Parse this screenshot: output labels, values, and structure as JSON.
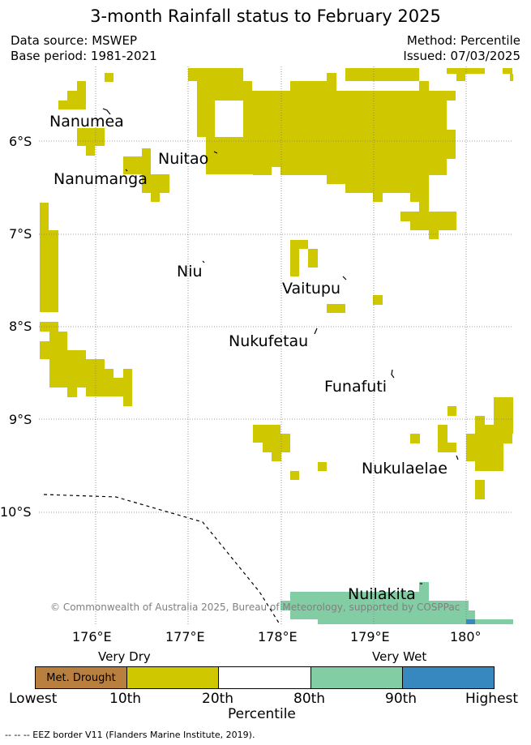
{
  "title": "3-month Rainfall status to February 2025",
  "header": {
    "source": "Data source: MSWEP",
    "base_period": "Base period: 1981-2021",
    "method": "Method: Percentile",
    "issued": "Issued: 07/03/2025"
  },
  "colors": {
    "met_drought": "#b87f3f",
    "very_dry": "#cfc800",
    "normal": "#ffffff",
    "wet": "#82cda4",
    "very_wet": "#3688be",
    "grid": "#808080"
  },
  "axes": {
    "lat_labels": [
      "6°S",
      "7°S",
      "8°S",
      "9°S",
      "10°S"
    ],
    "lon_labels": [
      "176°E",
      "177°E",
      "178°E",
      "179°E",
      "180°"
    ]
  },
  "places": [
    {
      "name": "Nanumea"
    },
    {
      "name": "Nuitao"
    },
    {
      "name": "Nanumanga"
    },
    {
      "name": "Niu"
    },
    {
      "name": "Vaitupu"
    },
    {
      "name": "Nukufetau"
    },
    {
      "name": "Funafuti"
    },
    {
      "name": "Nukulaelae"
    },
    {
      "name": "Nuilakita"
    }
  ],
  "copyright": "© Commonwealth of Australia 2025, Bureau of Meteorology, supported by COSPPac",
  "colorbar": {
    "very_dry_label": "Very Dry",
    "very_wet_label": "Very Wet",
    "met_drought_label": "Met. Drought",
    "ticks": [
      "Lowest",
      "10th",
      "20th",
      "80th",
      "90th",
      "Highest"
    ],
    "xlabel": "Percentile"
  },
  "footnote": "--  --  -- EEZ border V11 (Flanders Marine Institute, 2019)."
}
